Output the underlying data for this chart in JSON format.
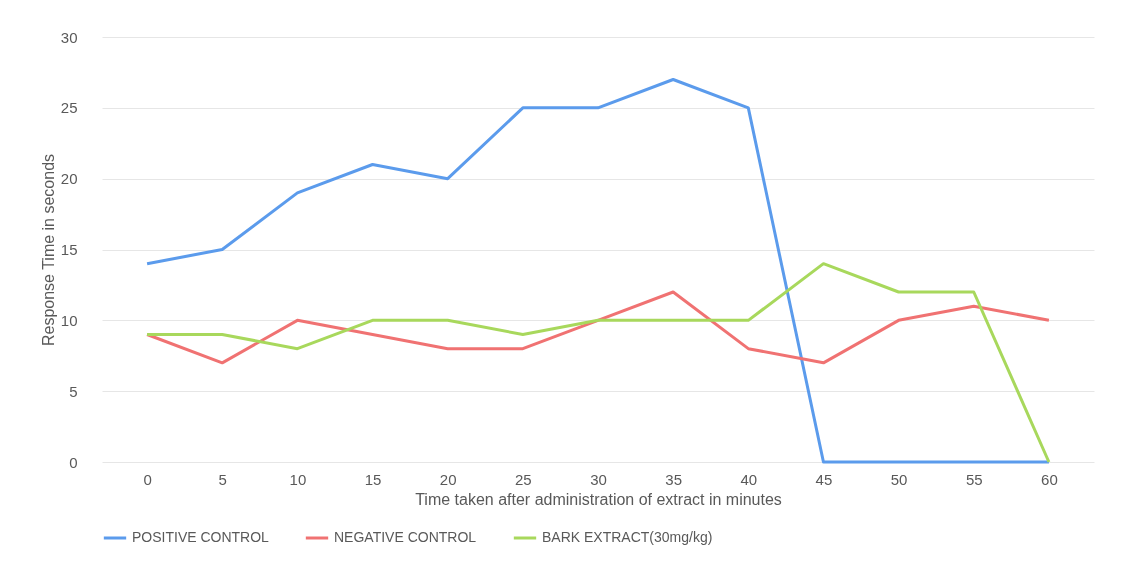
{
  "chart_data": {
    "type": "line",
    "xlabel": "Time taken after administration of extract in minutes",
    "ylabel": "Response Time in seconds",
    "categories": [
      "0",
      "5",
      "10",
      "15",
      "20",
      "25",
      "30",
      "35",
      "40",
      "45",
      "50",
      "55",
      "60"
    ],
    "series": [
      {
        "name": "POSITIVE CONTROL",
        "color": "#5b9bec",
        "values": [
          14,
          15,
          19,
          21,
          20,
          25,
          25,
          27,
          25,
          0,
          0,
          0,
          0
        ]
      },
      {
        "name": "NEGATIVE CONTROL",
        "color": "#f07272",
        "values": [
          9,
          7,
          10,
          9,
          8,
          8,
          10,
          12,
          8,
          7,
          10,
          11,
          10
        ]
      },
      {
        "name": "BARK EXTRACT(30mg/kg)",
        "color": "#a8d85c",
        "values": [
          9,
          9,
          8,
          10,
          10,
          9,
          10,
          10,
          10,
          14,
          12,
          12,
          0
        ]
      }
    ],
    "ylim": [
      0,
      30
    ],
    "yticks": [
      0,
      5,
      10,
      15,
      20,
      25,
      30
    ],
    "grid": "y",
    "legend": "bottom",
    "marker": "none",
    "line_style": "solid"
  }
}
